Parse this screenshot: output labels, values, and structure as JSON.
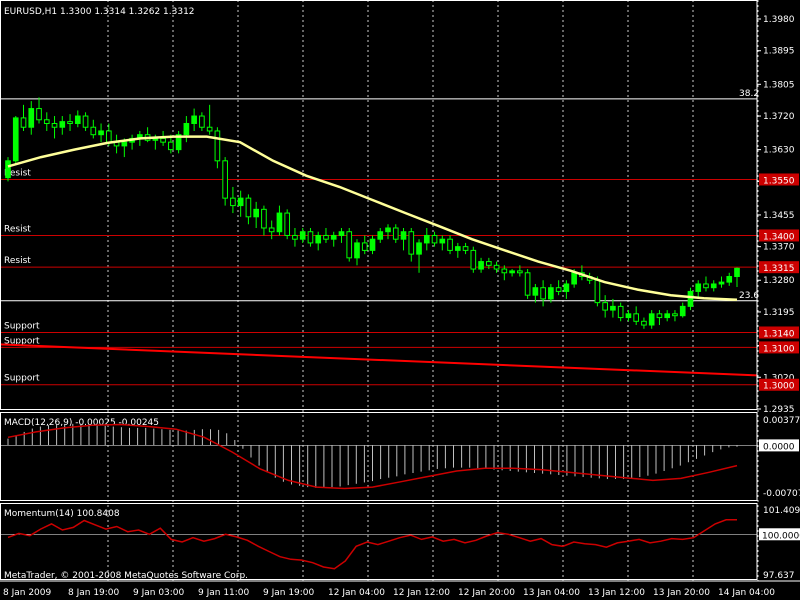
{
  "main": {
    "header": "EURUSD,H1  1.3300 1.3314 1.3262 1.3312",
    "price_axis": [
      "1.3980",
      "1.3895",
      "1.3805",
      "1.3720",
      "1.3630",
      "1.3545",
      "1.3455",
      "1.3370",
      "1.3280",
      "1.3195",
      "1.3105",
      "1.3020",
      "1.2935"
    ],
    "fib_levels": [
      {
        "label": "38.2",
        "price": 1.3766
      },
      {
        "label": "23.6",
        "price": 1.3225
      }
    ],
    "hlines": [
      {
        "label": "Resist",
        "tag": "1.3550",
        "price": 1.355
      },
      {
        "label": "Resist",
        "tag": "1.3400",
        "price": 1.34
      },
      {
        "label": "Resist",
        "tag": "1.3315",
        "price": 1.3315
      },
      {
        "label": "Support",
        "tag": "1.3140",
        "price": 1.314
      },
      {
        "label": "Support",
        "tag": "1.3100",
        "price": 1.31
      },
      {
        "label": "Support",
        "tag": "1.3000",
        "price": 1.3
      }
    ],
    "candles": [
      [
        1.3555,
        1.361,
        1.3545,
        1.36
      ],
      [
        1.36,
        1.372,
        1.359,
        1.3715
      ],
      [
        1.3715,
        1.375,
        1.368,
        1.369
      ],
      [
        1.369,
        1.376,
        1.367,
        1.374
      ],
      [
        1.374,
        1.377,
        1.37,
        1.371
      ],
      [
        1.371,
        1.373,
        1.368,
        1.37
      ],
      [
        1.37,
        1.372,
        1.366,
        1.369
      ],
      [
        1.369,
        1.372,
        1.367,
        1.3705
      ],
      [
        1.3705,
        1.3725,
        1.368,
        1.37
      ],
      [
        1.37,
        1.3735,
        1.369,
        1.372
      ],
      [
        1.372,
        1.373,
        1.368,
        1.369
      ],
      [
        1.369,
        1.371,
        1.366,
        1.367
      ],
      [
        1.367,
        1.37,
        1.365,
        1.368
      ],
      [
        1.368,
        1.37,
        1.364,
        1.365
      ],
      [
        1.365,
        1.367,
        1.362,
        1.364
      ],
      [
        1.364,
        1.366,
        1.361,
        1.365
      ],
      [
        1.365,
        1.367,
        1.363,
        1.366
      ],
      [
        1.366,
        1.368,
        1.364,
        1.367
      ],
      [
        1.367,
        1.369,
        1.365,
        1.3655
      ],
      [
        1.3655,
        1.367,
        1.363,
        1.366
      ],
      [
        1.366,
        1.368,
        1.364,
        1.365
      ],
      [
        1.365,
        1.367,
        1.362,
        1.363
      ],
      [
        1.363,
        1.368,
        1.362,
        1.367
      ],
      [
        1.367,
        1.372,
        1.365,
        1.37
      ],
      [
        1.37,
        1.374,
        1.368,
        1.372
      ],
      [
        1.372,
        1.373,
        1.368,
        1.369
      ],
      [
        1.369,
        1.375,
        1.367,
        1.368
      ],
      [
        1.368,
        1.369,
        1.358,
        1.36
      ],
      [
        1.36,
        1.361,
        1.348,
        1.35
      ],
      [
        1.35,
        1.353,
        1.346,
        1.348
      ],
      [
        1.348,
        1.352,
        1.345,
        1.35
      ],
      [
        1.35,
        1.351,
        1.343,
        1.345
      ],
      [
        1.345,
        1.349,
        1.342,
        1.347
      ],
      [
        1.347,
        1.348,
        1.34,
        1.342
      ],
      [
        1.342,
        1.344,
        1.339,
        1.341
      ],
      [
        1.341,
        1.348,
        1.34,
        1.346
      ],
      [
        1.346,
        1.347,
        1.339,
        1.34
      ],
      [
        1.34,
        1.342,
        1.337,
        1.339
      ],
      [
        1.339,
        1.342,
        1.338,
        1.341
      ],
      [
        1.341,
        1.342,
        1.337,
        1.338
      ],
      [
        1.338,
        1.341,
        1.336,
        1.34
      ],
      [
        1.34,
        1.342,
        1.338,
        1.339
      ],
      [
        1.339,
        1.341,
        1.337,
        1.34
      ],
      [
        1.34,
        1.342,
        1.338,
        1.341
      ],
      [
        1.341,
        1.342,
        1.333,
        1.334
      ],
      [
        1.334,
        1.339,
        1.332,
        1.338
      ],
      [
        1.338,
        1.34,
        1.335,
        1.336
      ],
      [
        1.336,
        1.34,
        1.335,
        1.339
      ],
      [
        1.339,
        1.342,
        1.338,
        1.341
      ],
      [
        1.341,
        1.343,
        1.339,
        1.342
      ],
      [
        1.342,
        1.343,
        1.338,
        1.339
      ],
      [
        1.339,
        1.342,
        1.336,
        1.341
      ],
      [
        1.341,
        1.342,
        1.333,
        1.335
      ],
      [
        1.335,
        1.339,
        1.33,
        1.338
      ],
      [
        1.338,
        1.342,
        1.336,
        1.34
      ],
      [
        1.34,
        1.341,
        1.337,
        1.338
      ],
      [
        1.338,
        1.34,
        1.336,
        1.339
      ],
      [
        1.339,
        1.34,
        1.335,
        1.336
      ],
      [
        1.336,
        1.338,
        1.334,
        1.337
      ],
      [
        1.337,
        1.338,
        1.335,
        1.336
      ],
      [
        1.336,
        1.337,
        1.33,
        1.331
      ],
      [
        1.331,
        1.334,
        1.33,
        1.333
      ],
      [
        1.333,
        1.334,
        1.331,
        1.332
      ],
      [
        1.332,
        1.333,
        1.33,
        1.331
      ],
      [
        1.331,
        1.332,
        1.328,
        1.33
      ],
      [
        1.33,
        1.331,
        1.329,
        1.3305
      ],
      [
        1.3305,
        1.332,
        1.329,
        1.33
      ],
      [
        1.33,
        1.331,
        1.323,
        1.324
      ],
      [
        1.324,
        1.327,
        1.322,
        1.326
      ],
      [
        1.326,
        1.328,
        1.321,
        1.323
      ],
      [
        1.323,
        1.327,
        1.322,
        1.326
      ],
      [
        1.326,
        1.328,
        1.324,
        1.325
      ],
      [
        1.325,
        1.328,
        1.323,
        1.327
      ],
      [
        1.327,
        1.331,
        1.326,
        1.33
      ],
      [
        1.33,
        1.332,
        1.328,
        1.329
      ],
      [
        1.329,
        1.33,
        1.327,
        1.328
      ],
      [
        1.328,
        1.329,
        1.321,
        1.322
      ],
      [
        1.322,
        1.324,
        1.318,
        1.32
      ],
      [
        1.32,
        1.323,
        1.318,
        1.321
      ],
      [
        1.321,
        1.322,
        1.317,
        1.318
      ],
      [
        1.318,
        1.32,
        1.317,
        1.319
      ],
      [
        1.319,
        1.321,
        1.316,
        1.317
      ],
      [
        1.317,
        1.318,
        1.315,
        1.316
      ],
      [
        1.316,
        1.32,
        1.315,
        1.319
      ],
      [
        1.319,
        1.32,
        1.316,
        1.318
      ],
      [
        1.318,
        1.32,
        1.317,
        1.319
      ],
      [
        1.319,
        1.32,
        1.317,
        1.3185
      ],
      [
        1.3185,
        1.322,
        1.318,
        1.321
      ],
      [
        1.321,
        1.326,
        1.32,
        1.325
      ],
      [
        1.325,
        1.328,
        1.323,
        1.327
      ],
      [
        1.327,
        1.329,
        1.325,
        1.326
      ],
      [
        1.326,
        1.328,
        1.325,
        1.327
      ],
      [
        1.327,
        1.329,
        1.326,
        1.3275
      ],
      [
        1.3275,
        1.33,
        1.3265,
        1.329
      ],
      [
        1.329,
        1.3314,
        1.3262,
        1.3312
      ]
    ],
    "ma": [
      1.3585,
      1.361,
      1.363,
      1.3648,
      1.366,
      1.3665,
      1.3665,
      1.365,
      1.36,
      1.356,
      1.353,
      1.3495,
      1.346,
      1.3425,
      1.339,
      1.336,
      1.333,
      1.3305,
      1.3275,
      1.3255,
      1.324,
      1.3232,
      1.3228
    ]
  },
  "macd": {
    "label": "MACD(12,26,9) -0.00025 -0.00245",
    "axis_top": "0.00377",
    "axis_zero": "0.0000",
    "axis_bottom": "-0.00707",
    "hist": [
      0.001,
      0.0015,
      0.002,
      0.0025,
      0.0028,
      0.003,
      0.0031,
      0.0032,
      0.0032,
      0.0032,
      0.0031,
      0.003,
      0.0029,
      0.0028,
      0.0027,
      0.0026,
      0.0026,
      0.0026,
      0.0025,
      0.0024,
      0.0023,
      0.0022,
      0.0022,
      0.0023,
      0.0024,
      0.0024,
      0.0023,
      0.0018,
      0.0008,
      -0.0005,
      -0.0018,
      -0.003,
      -0.004,
      -0.0048,
      -0.0054,
      -0.0058,
      -0.006,
      -0.0062,
      -0.0063,
      -0.0063,
      -0.0062,
      -0.0061,
      -0.0059,
      -0.0057,
      -0.0055,
      -0.0053,
      -0.005,
      -0.0048,
      -0.0046,
      -0.0043,
      -0.0041,
      -0.0039,
      -0.0037,
      -0.0035,
      -0.0034,
      -0.0033,
      -0.0033,
      -0.0033,
      -0.0034,
      -0.0035,
      -0.0036,
      -0.0037,
      -0.0038,
      -0.0039,
      -0.004,
      -0.0041,
      -0.0042,
      -0.0043,
      -0.0044,
      -0.0045,
      -0.0046,
      -0.0047,
      -0.0048,
      -0.0049,
      -0.005,
      -0.005,
      -0.005,
      -0.0049,
      -0.0047,
      -0.0045,
      -0.0042,
      -0.0038,
      -0.0034,
      -0.003,
      -0.0025,
      -0.002,
      -0.0015,
      -0.001,
      -0.0006,
      -0.0003,
      -0.0002
    ],
    "signal": [
      0.0012,
      0.002,
      0.0026,
      0.003,
      0.0031,
      0.0028,
      0.0024,
      0.0012,
      -0.001,
      -0.0035,
      -0.0052,
      -0.0062,
      -0.0064,
      -0.0062,
      -0.0054,
      -0.0046,
      -0.0038,
      -0.0034,
      -0.0034,
      -0.0036,
      -0.004,
      -0.0044,
      -0.0048,
      -0.0052,
      -0.0049,
      -0.004,
      -0.003
    ]
  },
  "momentum": {
    "label": "Momentum(14) 100.8408",
    "axis_top": "101.409",
    "axis_mid": "100.0000",
    "axis_bottom": "97.637",
    "values": [
      99.82,
      100.05,
      99.92,
      100.3,
      100.6,
      100.25,
      100.4,
      100.8,
      100.55,
      100.3,
      100.45,
      100.15,
      100.25,
      100.0,
      100.35,
      99.7,
      99.55,
      99.8,
      99.6,
      99.75,
      100.0,
      99.85,
      99.65,
      99.3,
      99.0,
      98.7,
      98.55,
      98.5,
      98.35,
      98.1,
      98.0,
      98.45,
      99.3,
      99.55,
      99.4,
      99.6,
      99.8,
      99.95,
      99.7,
      99.85,
      99.6,
      99.7,
      99.5,
      99.65,
      99.9,
      100.1,
      100.0,
      99.8,
      99.6,
      99.75,
      99.4,
      99.3,
      99.55,
      99.45,
      99.4,
      99.25,
      99.5,
      99.6,
      99.7,
      99.5,
      99.6,
      99.75,
      99.7,
      99.8,
      100.2,
      100.6,
      100.84,
      100.84
    ]
  },
  "time_axis": [
    "8 Jan 2009",
    "8 Jan 19:00",
    "9 Jan 03:00",
    "9 Jan 11:00",
    "9 Jan 19:00",
    "12 Jan 04:00",
    "12 Jan 12:00",
    "12 Jan 20:00",
    "13 Jan 04:00",
    "13 Jan 12:00",
    "13 Jan 20:00",
    "14 Jan 04:00"
  ],
  "copyright": "MetaTrader, © 2001-2008 MetaQuotes Software Corp.",
  "colors": {
    "bull": "#00ff00",
    "bear": "#000000",
    "wick": "#00ff00",
    "ma": "#ffff99",
    "fib": "#ffffff",
    "level": "#cc0000",
    "trend": "#ff0000",
    "tag_bg": "#cc0000"
  }
}
